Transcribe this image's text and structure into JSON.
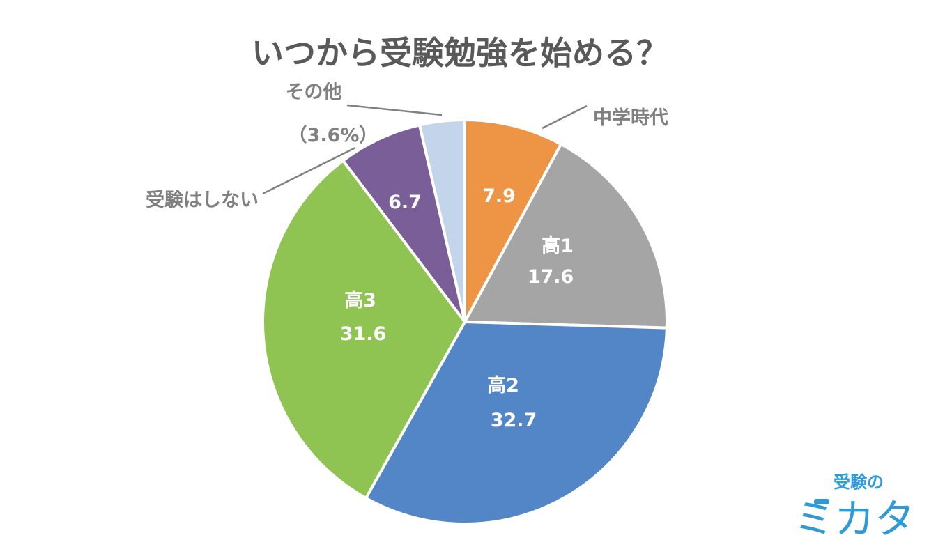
{
  "chart_data": {
    "type": "pie",
    "title": "いつから受験勉強を始める？",
    "slices": [
      {
        "label": "中学時代",
        "value": 7.9,
        "value_text": "7.9",
        "color": "#ED9445",
        "label_position": "outside"
      },
      {
        "label": "高1",
        "value": 17.6,
        "value_text": "17.6",
        "color": "#A5A5A5",
        "label_position": "inside"
      },
      {
        "label": "高2",
        "value": 32.7,
        "value_text": "32.7",
        "color": "#5286C6",
        "label_position": "inside"
      },
      {
        "label": "高3",
        "value": 31.6,
        "value_text": "31.6",
        "color": "#8FC352",
        "label_position": "inside"
      },
      {
        "label": "受験はしない",
        "value": 6.7,
        "value_text": "6.7",
        "color": "#7A5E98",
        "label_position": "outside"
      },
      {
        "label": "その他",
        "value": 3.6,
        "value_text": "（3.6%）",
        "color": "#C3D5EB",
        "label_position": "outside"
      }
    ],
    "start": "top",
    "direction": "clockwise"
  },
  "logo": {
    "top_text": "受験の",
    "bottom_text": "ミカタ",
    "color": "#2E9BD8"
  }
}
